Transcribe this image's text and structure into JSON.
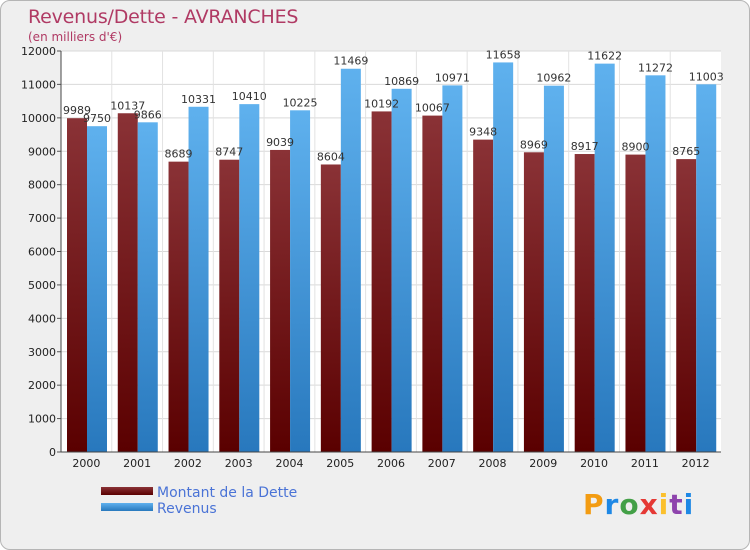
{
  "title": "Revenus/Dette - AVRANCHES",
  "subtitle": "(en milliers d'€)",
  "logo": {
    "text": "Proxiti",
    "letters": [
      {
        "ch": "P",
        "color": "#f39c12"
      },
      {
        "ch": "r",
        "color": "#1e88e5"
      },
      {
        "ch": "o",
        "color": "#43a047"
      },
      {
        "ch": "x",
        "color": "#e53935"
      },
      {
        "ch": "i",
        "color": "#fbc02d"
      },
      {
        "ch": "t",
        "color": "#8e44ad"
      },
      {
        "ch": "i",
        "color": "#1e88e5"
      }
    ]
  },
  "chart_data": {
    "type": "bar",
    "title": "Revenus/Dette - AVRANCHES",
    "subtitle": "(en milliers d'€)",
    "categories": [
      "2000",
      "2001",
      "2002",
      "2003",
      "2004",
      "2005",
      "2006",
      "2007",
      "2008",
      "2009",
      "2010",
      "2011",
      "2012"
    ],
    "series": [
      {
        "name": "Montant de la Dette",
        "color": "#7a1c1f",
        "values": [
          9989,
          10137,
          8689,
          8747,
          9039,
          8604,
          10192,
          10067,
          9348,
          8969,
          8917,
          8900,
          8765
        ]
      },
      {
        "name": "Revenus",
        "color": "#4aa3e6",
        "values": [
          9750,
          9866,
          10331,
          10410,
          10225,
          11469,
          10869,
          10971,
          11658,
          10962,
          11622,
          11272,
          11003
        ]
      }
    ],
    "ylim": [
      0,
      12000
    ],
    "yticks": [
      0,
      1000,
      2000,
      3000,
      4000,
      5000,
      6000,
      7000,
      8000,
      9000,
      10000,
      11000,
      12000
    ],
    "grid": true,
    "legend_position": "bottom-left"
  }
}
